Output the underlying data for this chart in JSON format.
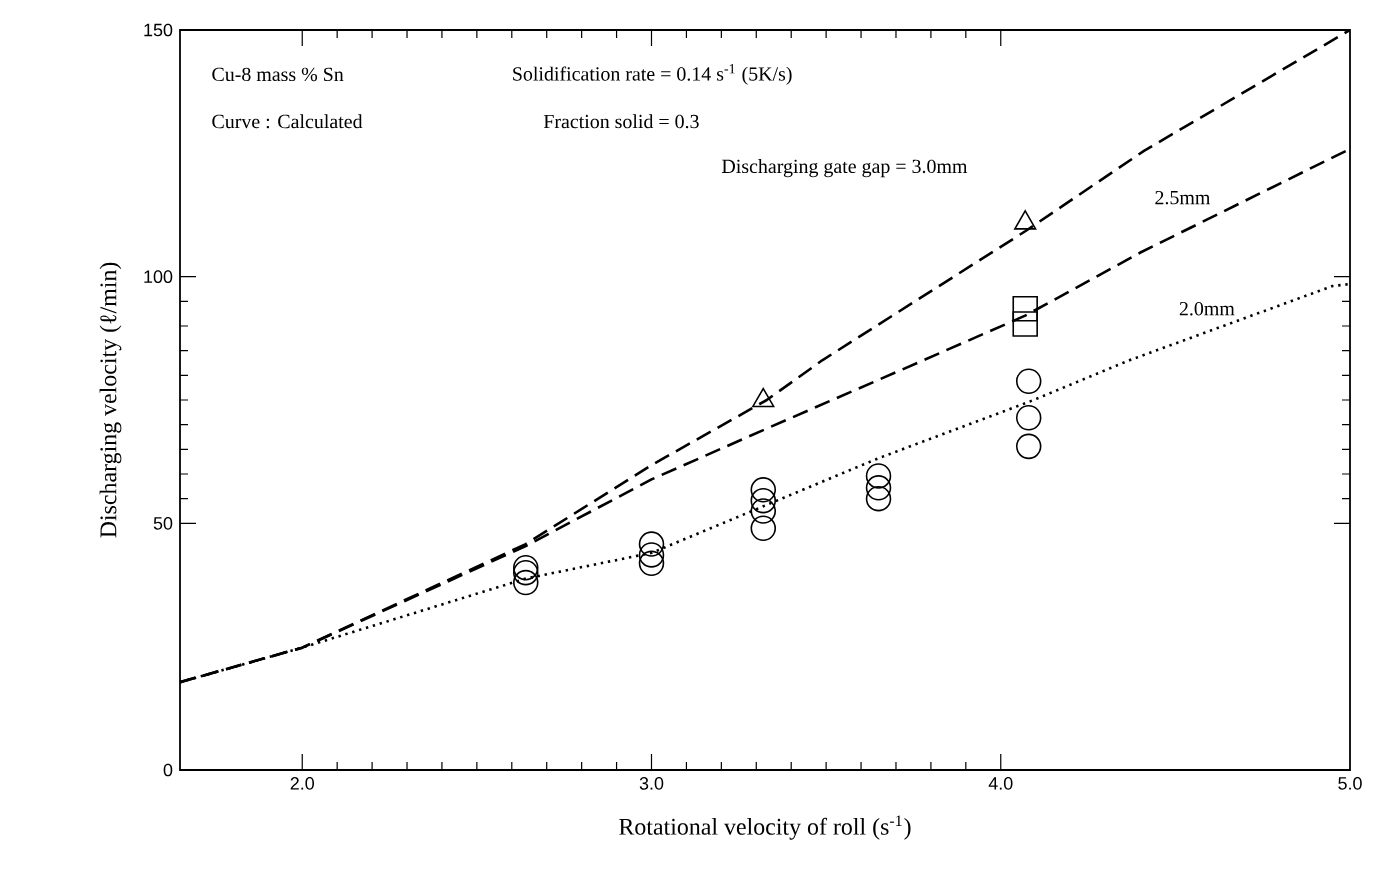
{
  "chart_data": {
    "type": "scatter",
    "xlabel": "Rotational velocity of roll (s$^{-1}$)",
    "ylabel": "Discharging velocity (ℓ/min)",
    "xlim": [
      1.65,
      5.0
    ],
    "ylim": [
      0,
      150
    ],
    "xticks": [
      {
        "value": 2,
        "label": "2.0"
      },
      {
        "value": 3,
        "label": "3.0"
      },
      {
        "value": 4,
        "label": "4.0"
      },
      {
        "value": 5,
        "label": "5.0"
      }
    ],
    "yticks": [
      {
        "value": 0,
        "label": "0"
      },
      {
        "value": 50,
        "label": "50"
      },
      {
        "value": 100,
        "label": "100"
      },
      {
        "value": 150,
        "label": "150"
      }
    ],
    "grid": false,
    "series": [
      {
        "type": "line",
        "line_style": "dashed",
        "marker": "none",
        "color": "#000000",
        "x": [
          1.65,
          2.0,
          2.64,
          3.0,
          3.33,
          3.49,
          4.07,
          4.41,
          5.0
        ],
        "values": [
          17.8,
          24.8,
          45.8,
          61.8,
          75,
          83.1,
          109.2,
          125.5,
          150
        ]
      },
      {
        "type": "line",
        "line_style": "dashed",
        "marker": "none",
        "color": "#000000",
        "x": [
          1.65,
          2.0,
          2.64,
          3.0,
          3.32,
          3.78,
          4.07,
          4.4,
          5.0
        ],
        "values": [
          17.8,
          24.8,
          45.4,
          58.9,
          68.9,
          83.1,
          92.1,
          104.9,
          125.9
        ]
      },
      {
        "type": "line",
        "line_style": "dotted",
        "marker": "none",
        "color": "#000000",
        "x": [
          1.65,
          2.0,
          2.64,
          3.0,
          3.65,
          4.08,
          4.37,
          4.95,
          5.0
        ],
        "values": [
          17.8,
          24.8,
          38.8,
          44.0,
          63.2,
          74.6,
          83.1,
          98.1,
          98.5
        ]
      },
      {
        "marker": "triangle",
        "color": "#000000",
        "x": [
          3.32,
          4.07
        ],
        "values": [
          74.9,
          110.9
        ]
      },
      {
        "marker": "square",
        "color": "#000000",
        "x": [
          4.07,
          4.07
        ],
        "values": [
          93.5,
          90.4
        ]
      },
      {
        "marker": "circle",
        "color": "#000000",
        "x": [
          2.64,
          2.64,
          2.64,
          3.0,
          3.0,
          3.0,
          3.32,
          3.32,
          3.32,
          3.32,
          3.65,
          3.65,
          3.65,
          4.08,
          4.08,
          4.08
        ],
        "values": [
          41,
          40,
          38,
          45.8,
          43.6,
          41.9,
          56.8,
          54.6,
          52.5,
          49.0,
          59.6,
          57.2,
          55.0,
          78.8,
          71.4,
          65.6
        ]
      }
    ],
    "annotations": [
      "Cu-8 mass % Sn",
      "Solidification rate = 0.14 s$^{-1}$ (5K/s)",
      "Curve : Calculated",
      "Fraction solid = 0.3",
      "Discharging gate gap = 3.0mm",
      "2.5mm",
      "2.0mm"
    ]
  }
}
